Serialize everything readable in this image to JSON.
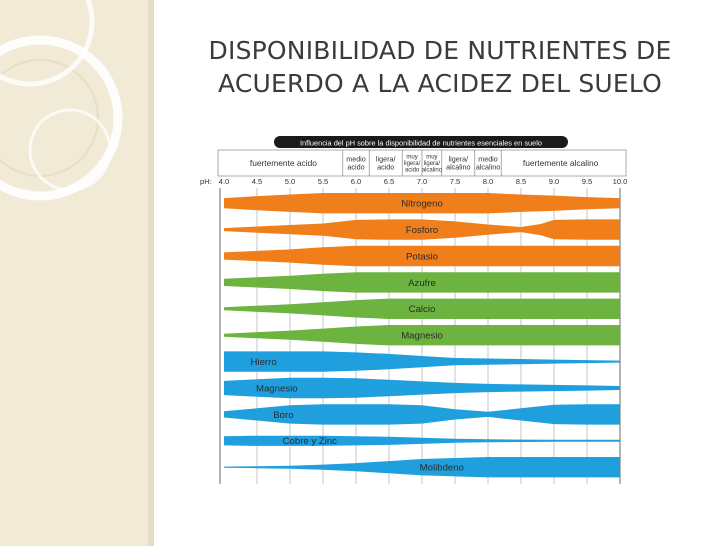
{
  "slide": {
    "title_line1": "DISPONIBILIDAD DE NUTRIENTES DE",
    "title_line2": "ACUERDO A LA ACIDEZ DEL SUELO"
  },
  "chart_data": {
    "type": "diagram",
    "title": "Influencia del pH sobre la disponibilidad de nutrientes esenciales en suelo",
    "ph_label": "pH:",
    "ph_ticks": [
      4.0,
      4.5,
      5.0,
      5.5,
      6.0,
      6.5,
      7.0,
      7.5,
      8.0,
      8.5,
      9.0,
      9.5,
      10.0
    ],
    "ph_tick_labels": [
      "4.0",
      "4.5",
      "5.0",
      "5.5",
      "6.0",
      "6.5",
      "7.0",
      "7.5",
      "8.0",
      "8.5",
      "9.0",
      "9.5",
      "10.0"
    ],
    "zones": [
      {
        "lines": [
          "fuertemente acido"
        ],
        "from": 4.0,
        "to": 5.8
      },
      {
        "lines": [
          "medio",
          "acido"
        ],
        "from": 5.8,
        "to": 6.2
      },
      {
        "lines": [
          "ligera/",
          "acido"
        ],
        "from": 6.2,
        "to": 6.7
      },
      {
        "lines": [
          "muy",
          "ligera/",
          "acido"
        ],
        "from": 6.7,
        "to": 7.0
      },
      {
        "lines": [
          "muy",
          "ligera/",
          "alcalino"
        ],
        "from": 7.0,
        "to": 7.3
      },
      {
        "lines": [
          "ligera/",
          "alcalino"
        ],
        "from": 7.3,
        "to": 7.8
      },
      {
        "lines": [
          "medio",
          "alcalino"
        ],
        "from": 7.8,
        "to": 8.2
      },
      {
        "lines": [
          "fuertemente alcalino"
        ],
        "from": 8.2,
        "to": 10.0
      }
    ],
    "nutrients": [
      {
        "name": "Nitrogeno",
        "color": "#f07f1b",
        "label_ph": 7.0,
        "profile": [
          [
            4.0,
            0.5
          ],
          [
            4.5,
            0.7
          ],
          [
            5.0,
            0.85
          ],
          [
            5.5,
            1
          ],
          [
            6.0,
            1
          ],
          [
            7.5,
            1
          ],
          [
            8.0,
            1
          ],
          [
            8.5,
            0.85
          ],
          [
            9.0,
            0.75
          ],
          [
            9.5,
            0.6
          ],
          [
            10.0,
            0.5
          ]
        ]
      },
      {
        "name": "Fosforo",
        "color": "#f07f1b",
        "label_ph": 7.0,
        "profile": [
          [
            4.0,
            0.15
          ],
          [
            4.5,
            0.3
          ],
          [
            5.0,
            0.45
          ],
          [
            5.5,
            0.6
          ],
          [
            6.0,
            0.95
          ],
          [
            6.5,
            1
          ],
          [
            7.0,
            1
          ],
          [
            7.5,
            0.8
          ],
          [
            8.0,
            0.5
          ],
          [
            8.5,
            0.25
          ],
          [
            8.8,
            0.55
          ],
          [
            9.0,
            0.95
          ],
          [
            9.5,
            1
          ],
          [
            10.0,
            1
          ]
        ]
      },
      {
        "name": "Potasio",
        "color": "#f07f1b",
        "label_ph": 7.0,
        "profile": [
          [
            4.0,
            0.35
          ],
          [
            4.5,
            0.5
          ],
          [
            5.0,
            0.65
          ],
          [
            5.5,
            0.85
          ],
          [
            6.0,
            1
          ],
          [
            10.0,
            1
          ]
        ]
      },
      {
        "name": "Azufre",
        "color": "#6cb33f",
        "label_ph": 7.0,
        "profile": [
          [
            4.0,
            0.35
          ],
          [
            4.5,
            0.5
          ],
          [
            5.0,
            0.65
          ],
          [
            5.5,
            0.85
          ],
          [
            6.0,
            1
          ],
          [
            10.0,
            1
          ]
        ]
      },
      {
        "name": "Calcio",
        "color": "#6cb33f",
        "label_ph": 7.0,
        "profile": [
          [
            4.0,
            0.15
          ],
          [
            4.5,
            0.3
          ],
          [
            5.0,
            0.45
          ],
          [
            5.5,
            0.65
          ],
          [
            6.0,
            0.85
          ],
          [
            6.5,
            1
          ],
          [
            10.0,
            1
          ]
        ]
      },
      {
        "name": "Magnesio",
        "color": "#6cb33f",
        "label_ph": 7.0,
        "profile": [
          [
            4.0,
            0.15
          ],
          [
            4.5,
            0.3
          ],
          [
            5.0,
            0.45
          ],
          [
            5.5,
            0.65
          ],
          [
            6.0,
            0.85
          ],
          [
            6.5,
            1
          ],
          [
            10.0,
            1
          ]
        ]
      },
      {
        "name": "Hierro",
        "color": "#1f9fdd",
        "label_ph": 4.6,
        "profile": [
          [
            4.0,
            1
          ],
          [
            5.0,
            1
          ],
          [
            5.5,
            1
          ],
          [
            6.0,
            0.9
          ],
          [
            6.5,
            0.75
          ],
          [
            7.0,
            0.55
          ],
          [
            7.5,
            0.35
          ],
          [
            8.0,
            0.3
          ],
          [
            8.5,
            0.25
          ],
          [
            9.0,
            0.2
          ],
          [
            9.5,
            0.15
          ],
          [
            10.0,
            0.1
          ]
        ]
      },
      {
        "name": "Magnesio",
        "color": "#1f9fdd",
        "label_ph": 4.8,
        "profile": [
          [
            4.0,
            0.7
          ],
          [
            4.5,
            0.85
          ],
          [
            5.0,
            1
          ],
          [
            5.5,
            1
          ],
          [
            6.0,
            0.95
          ],
          [
            6.5,
            0.8
          ],
          [
            7.0,
            0.65
          ],
          [
            7.5,
            0.5
          ],
          [
            8.0,
            0.4
          ],
          [
            8.5,
            0.35
          ],
          [
            9.0,
            0.3
          ],
          [
            9.5,
            0.25
          ],
          [
            10.0,
            0.2
          ]
        ]
      },
      {
        "name": "Boro",
        "color": "#1f9fdd",
        "label_ph": 4.9,
        "profile": [
          [
            4.0,
            0.3
          ],
          [
            4.5,
            0.6
          ],
          [
            5.0,
            0.9
          ],
          [
            5.5,
            1
          ],
          [
            6.0,
            1
          ],
          [
            6.5,
            1
          ],
          [
            7.0,
            0.9
          ],
          [
            7.5,
            0.5
          ],
          [
            8.0,
            0.25
          ],
          [
            8.5,
            0.6
          ],
          [
            9.0,
            0.95
          ],
          [
            9.5,
            1
          ],
          [
            10.0,
            1
          ]
        ]
      },
      {
        "name": "Cobre y Zinc",
        "color": "#1f9fdd",
        "label_ph": 5.3,
        "profile": [
          [
            4.0,
            0.45
          ],
          [
            4.5,
            0.5
          ],
          [
            5.0,
            0.5
          ],
          [
            5.5,
            0.5
          ],
          [
            6.0,
            0.45
          ],
          [
            6.5,
            0.4
          ],
          [
            7.0,
            0.3
          ],
          [
            7.5,
            0.2
          ],
          [
            8.0,
            0.15
          ],
          [
            8.5,
            0.12
          ],
          [
            9.0,
            0.1
          ],
          [
            9.5,
            0.1
          ],
          [
            10.0,
            0.1
          ]
        ]
      },
      {
        "name": "Molibdeno",
        "color": "#1f9fdd",
        "label_ph": 7.3,
        "profile": [
          [
            4.0,
            0.05
          ],
          [
            4.5,
            0.1
          ],
          [
            5.0,
            0.15
          ],
          [
            5.5,
            0.25
          ],
          [
            6.0,
            0.4
          ],
          [
            6.5,
            0.6
          ],
          [
            7.0,
            0.8
          ],
          [
            7.5,
            0.9
          ],
          [
            8.0,
            1
          ],
          [
            10.0,
            1
          ]
        ]
      }
    ]
  }
}
